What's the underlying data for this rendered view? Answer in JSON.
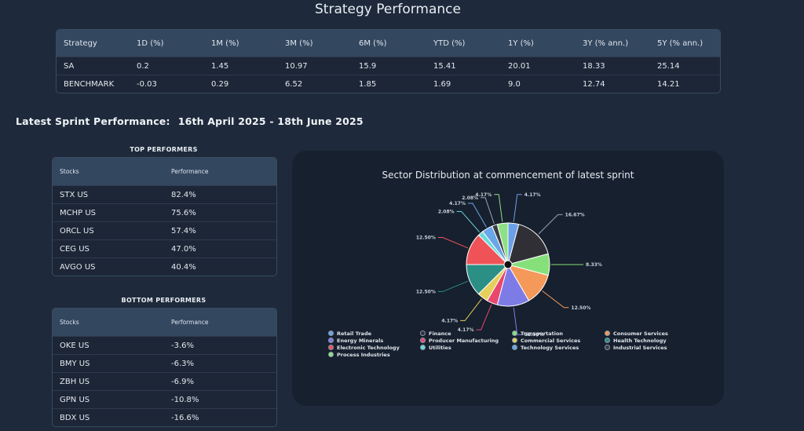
{
  "page_title": "Strategy Performance",
  "strategy_table": {
    "headers": [
      "Strategy",
      "1D (%)",
      "1M (%)",
      "3M (%)",
      "6M (%)",
      "YTD (%)",
      "1Y (%)",
      "3Y (% ann.)",
      "5Y (% ann.)"
    ],
    "rows": [
      [
        "SA",
        "0.2",
        "1.45",
        "10.97",
        "15.9",
        "15.41",
        "20.01",
        "18.33",
        "25.14"
      ],
      [
        "BENCHMARK",
        "-0.03",
        "0.29",
        "6.52",
        "1.85",
        "1.69",
        "9.0",
        "12.74",
        "14.21"
      ]
    ]
  },
  "sprint": {
    "label": "Latest Sprint Performance:",
    "period": "16th April 2025 - 18th June 2025"
  },
  "top_performers": {
    "heading": "TOP PERFORMERS",
    "headers": [
      "Stocks",
      "Performance"
    ],
    "rows": [
      [
        "STX US",
        "82.4%"
      ],
      [
        "MCHP US",
        "75.6%"
      ],
      [
        "ORCL US",
        "57.4%"
      ],
      [
        "CEG US",
        "47.0%"
      ],
      [
        "AVGO US",
        "40.4%"
      ]
    ]
  },
  "bottom_performers": {
    "heading": "BOTTOM PERFORMERS",
    "headers": [
      "Stocks",
      "Performance"
    ],
    "rows": [
      [
        "OKE US",
        "-3.6%"
      ],
      [
        "BMY US",
        "-6.3%"
      ],
      [
        "ZBH US",
        "-6.9%"
      ],
      [
        "GPN US",
        "-10.8%"
      ],
      [
        "BDX US",
        "-16.6%"
      ]
    ]
  },
  "chart_data": {
    "type": "pie",
    "title": "Sector Distribution at commencement of latest sprint",
    "slices": [
      {
        "name": "Retail Trade",
        "value": 4.17,
        "color": "#6ba0e6"
      },
      {
        "name": "Finance",
        "value": 16.67,
        "color": "#2f2f35"
      },
      {
        "name": "Transportation",
        "value": 8.33,
        "color": "#86e07a"
      },
      {
        "name": "Consumer Services",
        "value": 12.5,
        "color": "#f4995a"
      },
      {
        "name": "Energy Minerals",
        "value": 12.5,
        "color": "#7d7ce6"
      },
      {
        "name": "Producer Manufacturing",
        "value": 4.17,
        "color": "#e8486e"
      },
      {
        "name": "Commercial Services",
        "value": 4.17,
        "color": "#e6cf5a"
      },
      {
        "name": "Health Technology",
        "value": 12.5,
        "color": "#2b8f86"
      },
      {
        "name": "Electronic Technology",
        "value": 12.5,
        "color": "#ef5358"
      },
      {
        "name": "Utilities",
        "value": 2.08,
        "color": "#6ad9db"
      },
      {
        "name": "Technology Services",
        "value": 4.17,
        "color": "#6aa7e8"
      },
      {
        "name": "Industrial Services",
        "value": 2.08,
        "color": "#3c3b42"
      },
      {
        "name": "Process Industries",
        "value": 4.17,
        "color": "#8ee086"
      }
    ],
    "legend_order": [
      "Retail Trade",
      "Finance",
      "Transportation",
      "Consumer Services",
      "Energy Minerals",
      "Producer Manufacturing",
      "Commercial Services",
      "Health Technology",
      "Electronic Technology",
      "Utilities",
      "Technology Services",
      "Industrial Services",
      "Process Industries"
    ],
    "legend_placement": "bottom"
  }
}
